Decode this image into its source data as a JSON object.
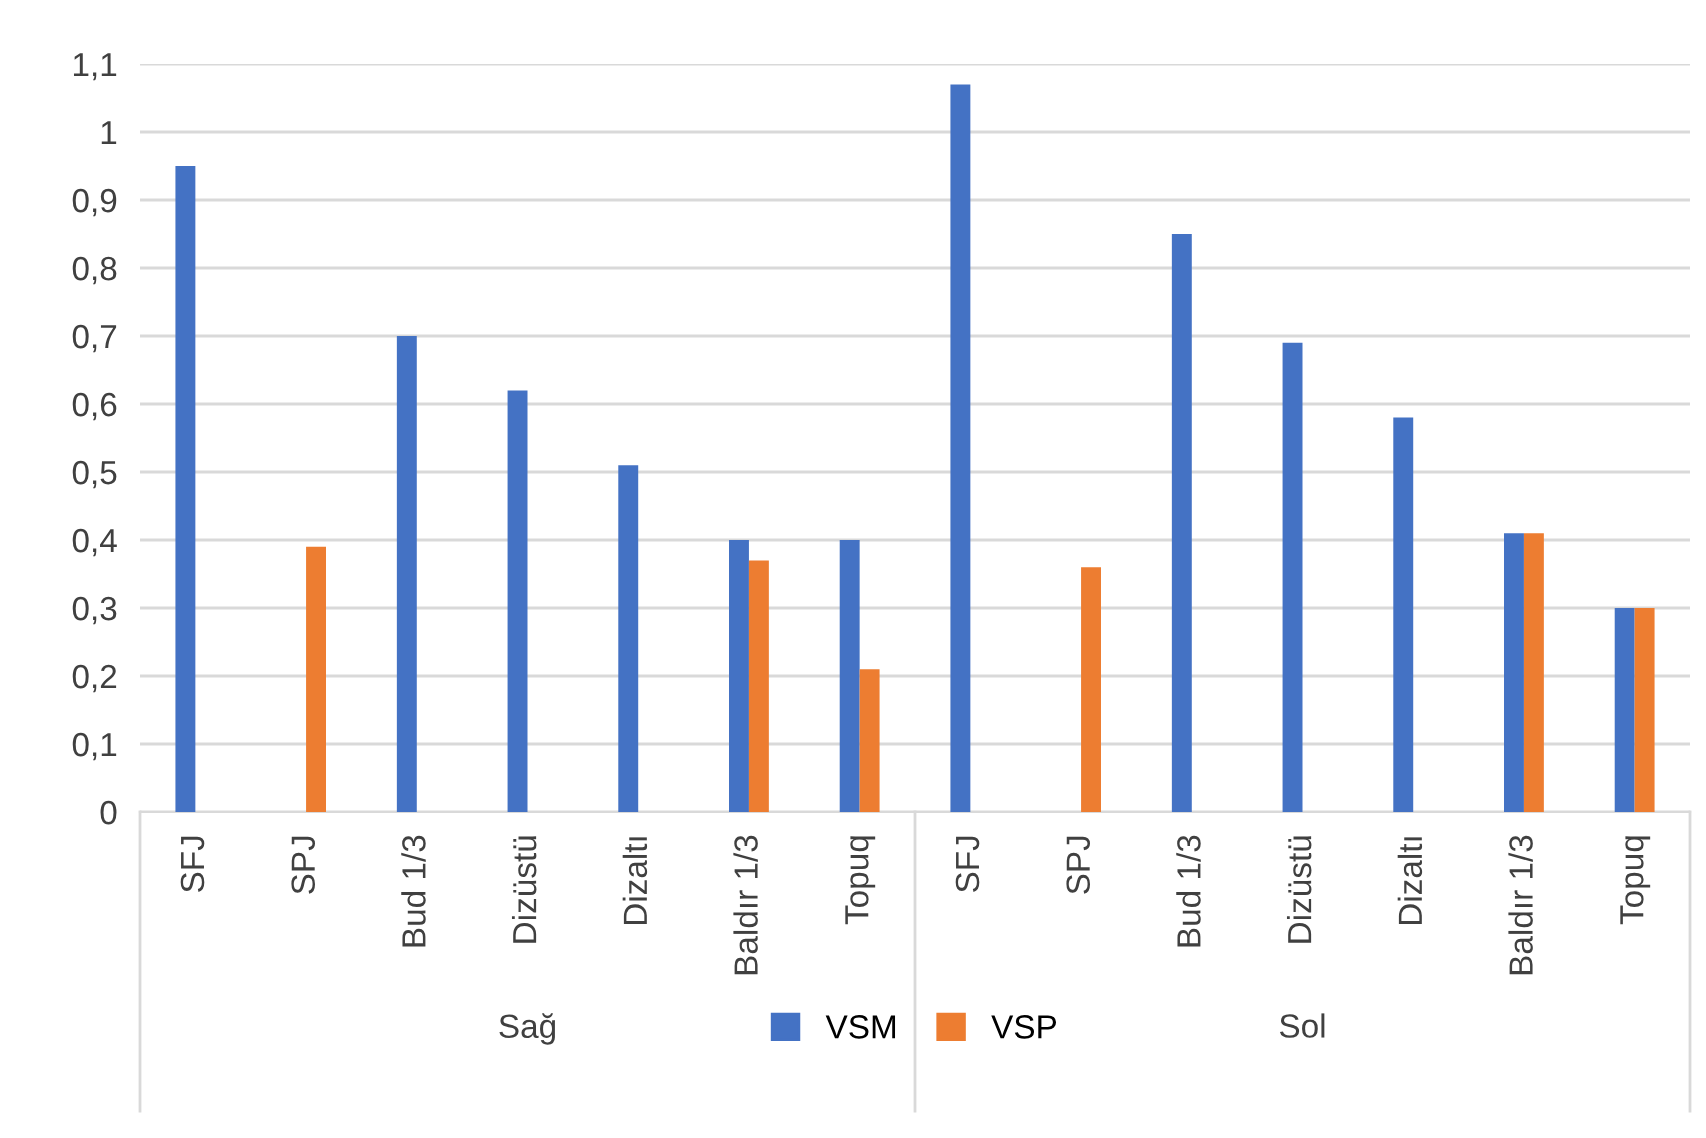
{
  "chart_data": {
    "type": "bar",
    "categories": [
      "SFJ",
      "SPJ",
      "Bud 1/3",
      "Dizüstü",
      "Dizaltı",
      "Baldır 1/3",
      "Topuq",
      "SFJ",
      "SPJ",
      "Bud 1/3",
      "Dizüstü",
      "Dizaltı",
      "Baldır 1/3",
      "Topuq"
    ],
    "series": [
      {
        "name": "VSM",
        "color": "#4472c4",
        "values": [
          0.95,
          null,
          0.7,
          0.62,
          0.51,
          0.4,
          0.4,
          1.07,
          null,
          0.85,
          0.69,
          0.58,
          0.41,
          0.3
        ]
      },
      {
        "name": "VSP",
        "color": "#ed7d31",
        "values": [
          null,
          0.39,
          null,
          null,
          null,
          0.37,
          0.21,
          null,
          0.36,
          null,
          null,
          null,
          0.41,
          0.3
        ]
      }
    ],
    "annotations": [
      "Sağ",
      "Sol"
    ],
    "ylim": [
      0,
      1.1
    ],
    "yticks": [
      {
        "value": 0,
        "label": "0"
      },
      {
        "value": 0.1,
        "label": "0,1"
      },
      {
        "value": 0.2,
        "label": "0,2"
      },
      {
        "value": 0.3,
        "label": "0,3"
      },
      {
        "value": 0.4,
        "label": "0,4"
      },
      {
        "value": 0.5,
        "label": "0,5"
      },
      {
        "value": 0.6,
        "label": "0,6"
      },
      {
        "value": 0.7,
        "label": "0,7"
      },
      {
        "value": 0.8,
        "label": "0,8"
      },
      {
        "value": 0.9,
        "label": "0,9"
      },
      {
        "value": 1,
        "label": "1"
      },
      {
        "value": 1.1,
        "label": "1,1"
      }
    ],
    "grid": "y",
    "legend": "bottom"
  }
}
